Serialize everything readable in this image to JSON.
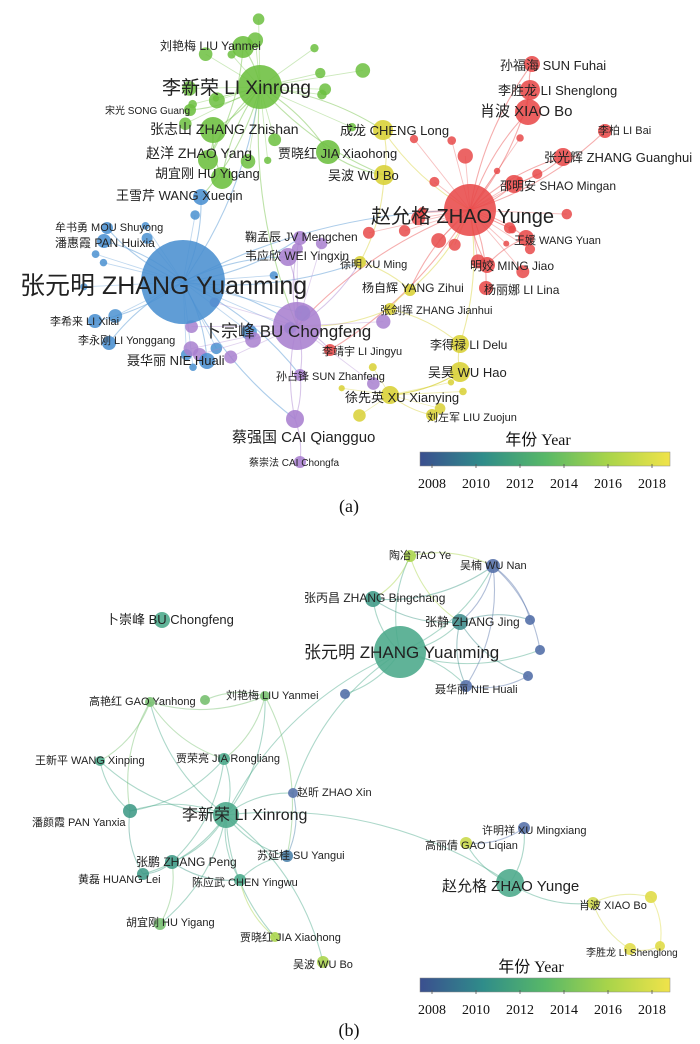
{
  "panels": [
    {
      "caption": "(a)",
      "legend": {
        "title": "年份 Year",
        "ticks": [
          "2008",
          "2010",
          "2012",
          "2014",
          "2016",
          "2018"
        ],
        "gradient_colors": [
          "#3b4f8f",
          "#2f8c8a",
          "#58b868",
          "#a8d44a",
          "#f0e34a"
        ]
      },
      "nodes": [
        {
          "label": "张元明 ZHANG Yuanming",
          "color": "#4a90d0"
        },
        {
          "label": "李新荣 LI Xinrong",
          "color": "#6cbf3f"
        },
        {
          "label": "赵允格 ZHAO Yunge",
          "color": "#e84a4a"
        },
        {
          "label": "卜宗峰 BU Chongfeng",
          "color": "#a880cf"
        },
        {
          "label": "张志山 ZHANG Zhishan",
          "color": "#6cbf3f"
        },
        {
          "label": "刘艳梅 LIU Yanmei",
          "color": "#6cbf3f"
        },
        {
          "label": "宋光 SONG Guang",
          "color": "#6cbf3f"
        },
        {
          "label": "赵洋 ZHAO Yang",
          "color": "#6cbf3f"
        },
        {
          "label": "贾晓红 JIA Xiaohong",
          "color": "#6cbf3f"
        },
        {
          "label": "胡宜刚 HU Yigang",
          "color": "#6cbf3f"
        },
        {
          "label": "成龙 CHENG Long",
          "color": "#d8d034"
        },
        {
          "label": "吴波 WU Bo",
          "color": "#d8d034"
        },
        {
          "label": "孙福海 SUN Fuhai",
          "color": "#e84a4a"
        },
        {
          "label": "李胜龙 LI Shenglong",
          "color": "#e84a4a"
        },
        {
          "label": "肖波 XIAO Bo",
          "color": "#e84a4a"
        },
        {
          "label": "李柏 LI Bai",
          "color": "#e84a4a"
        },
        {
          "label": "张光辉 ZHANG Guanghui",
          "color": "#e84a4a"
        },
        {
          "label": "邵明安 SHAO Mingan",
          "color": "#e84a4a"
        },
        {
          "label": "王媛 WANG Yuan",
          "color": "#e84a4a"
        },
        {
          "label": "明姣 MING Jiao",
          "color": "#e84a4a"
        },
        {
          "label": "杨丽娜 LI Lina",
          "color": "#e84a4a"
        },
        {
          "label": "王雪芹 WANG Xueqin",
          "color": "#4a90d0"
        },
        {
          "label": "牟书勇 MOU Shuyong",
          "color": "#4a90d0"
        },
        {
          "label": "潘惠霞 PAN Huixia",
          "color": "#4a90d0"
        },
        {
          "label": "李希来 LI Xilai",
          "color": "#4a90d0"
        },
        {
          "label": "李永刚 LI Yonggang",
          "color": "#4a90d0"
        },
        {
          "label": "聂华丽 NIE Huali",
          "color": "#4a90d0"
        },
        {
          "label": "鞠孟辰 JV Mengchen",
          "color": "#a880cf"
        },
        {
          "label": "韦应欣 WEI Yingxin",
          "color": "#a880cf"
        },
        {
          "label": "徐明 XU Ming",
          "color": "#d8d034"
        },
        {
          "label": "杨自辉 YANG Zihui",
          "color": "#d8d034"
        },
        {
          "label": "张剑挥 ZHANG Jianhui",
          "color": "#d8d034"
        },
        {
          "label": "李靖宇 LI Jingyu",
          "color": "#e84a4a"
        },
        {
          "label": "李得禄 LI Delu",
          "color": "#d8d034"
        },
        {
          "label": "吴昊 WU Hao",
          "color": "#d8d034"
        },
        {
          "label": "孙占锋 SUN Zhanfeng",
          "color": "#a880cf"
        },
        {
          "label": "徐先英 XU Xianying",
          "color": "#d8d034"
        },
        {
          "label": "刘左军 LIU Zuojun",
          "color": "#d8d034"
        },
        {
          "label": "蔡强国 CAI Qiangguo",
          "color": "#a880cf"
        },
        {
          "label": "蔡崇法 CAI Chongfa",
          "color": "#a880cf"
        }
      ]
    },
    {
      "caption": "(b)",
      "legend": {
        "title": "年份 Year",
        "ticks": [
          "2008",
          "2010",
          "2012",
          "2014",
          "2016",
          "2018"
        ],
        "gradient_colors": [
          "#3b4f8f",
          "#2f8c8a",
          "#58b868",
          "#a8d44a",
          "#f0e34a"
        ]
      },
      "nodes": [
        {
          "label": "张元明 ZHANG Yuanming",
          "color": "#4aa88a"
        },
        {
          "label": "李新荣 LI Xinrong",
          "color": "#4aa88a"
        },
        {
          "label": "赵允格 ZHAO Yunge",
          "color": "#4aa88a"
        },
        {
          "label": "卜崇峰 BU Chongfeng",
          "color": "#4aa88a"
        },
        {
          "label": "陶冶 TAO Ye",
          "color": "#a8d44a"
        },
        {
          "label": "吴楠 WU Nan",
          "color": "#5470a8"
        },
        {
          "label": "张丙昌 ZHANG Bingchang",
          "color": "#3f9a86"
        },
        {
          "label": "张静 ZHANG Jing",
          "color": "#3f8c8c"
        },
        {
          "label": "聂华丽 NIE Huali",
          "color": "#5470a8"
        },
        {
          "label": "高艳红 GAO Yanhong",
          "color": "#78c070"
        },
        {
          "label": "刘艳梅 LIU Yanmei",
          "color": "#78c070"
        },
        {
          "label": "王新平 WANG Xinping",
          "color": "#4aa88a"
        },
        {
          "label": "贾荣亮 JIA Rongliang",
          "color": "#4aa88a"
        },
        {
          "label": "赵昕 ZHAO Xin",
          "color": "#5470a8"
        },
        {
          "label": "潘颜霞 PAN Yanxia",
          "color": "#3f9a86"
        },
        {
          "label": "张鹏 ZHANG Peng",
          "color": "#3f9a86"
        },
        {
          "label": "苏延桂 SU Yangui",
          "color": "#4a80a8"
        },
        {
          "label": "黄磊 HUANG Lei",
          "color": "#3f9a86"
        },
        {
          "label": "陈应武 CHEN Yingwu",
          "color": "#4aa88a"
        },
        {
          "label": "胡宜刚 HU Yigang",
          "color": "#78c070"
        },
        {
          "label": "贾晓红 JIA Xiaohong",
          "color": "#a8d44a"
        },
        {
          "label": "吴波 WU Bo",
          "color": "#a8d44a"
        },
        {
          "label": "许明祥 XU Mingxiang",
          "color": "#5470a8"
        },
        {
          "label": "高丽倩 GAO Liqian",
          "color": "#c8d848"
        },
        {
          "label": "肖波 XIAO Bo",
          "color": "#d0d84a"
        },
        {
          "label": "李胜龙 LI Shenglong",
          "color": "#e0dc48"
        }
      ]
    }
  ]
}
